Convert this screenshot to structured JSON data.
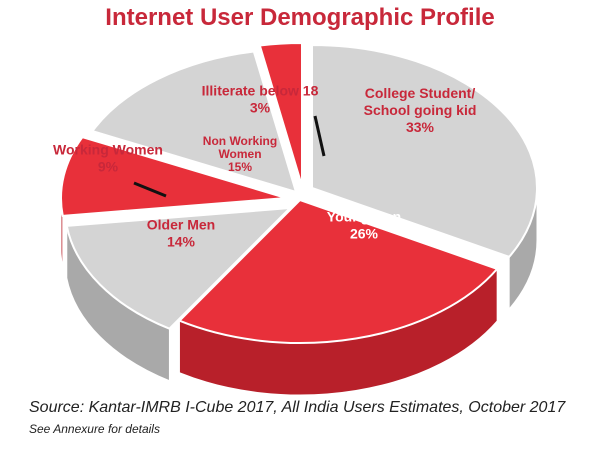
{
  "chart_data": {
    "type": "pie",
    "title": "Internet User Demographic Profile",
    "slices": [
      {
        "label_lines": [
          "College Student/",
          "School going kid"
        ],
        "value": 33,
        "display": "33%",
        "color": "#d4d4d4"
      },
      {
        "label_lines": [
          "Young Men"
        ],
        "value": 26,
        "display": "26%",
        "color": "#e8303a"
      },
      {
        "label_lines": [
          "Older Men"
        ],
        "value": 14,
        "display": "14%",
        "color": "#d4d4d4"
      },
      {
        "label_lines": [
          "Working Women"
        ],
        "value": 9,
        "display": "9%",
        "color": "#e8303a"
      },
      {
        "label_lines": [
          "Non Working",
          "Women"
        ],
        "value": 15,
        "display": "15%",
        "color": "#d4d4d4"
      },
      {
        "label_lines": [
          "Illiterate below 18"
        ],
        "value": 3,
        "display": "3%",
        "color": "#e8303a"
      }
    ],
    "source": "Source: Kantar-IMRB I-Cube 2017, All India Users Estimates, October 2017",
    "note": "See Annexure for details"
  },
  "colors": {
    "title": "#c8283a",
    "red_face": "#e8303a",
    "red_side": "#b8202a",
    "grey_face": "#d4d4d4",
    "grey_side": "#a9a9a9",
    "outline": "#ffffff",
    "label_dark": "#c8283a",
    "label_light": "#ffffff",
    "leader": "#111111"
  }
}
